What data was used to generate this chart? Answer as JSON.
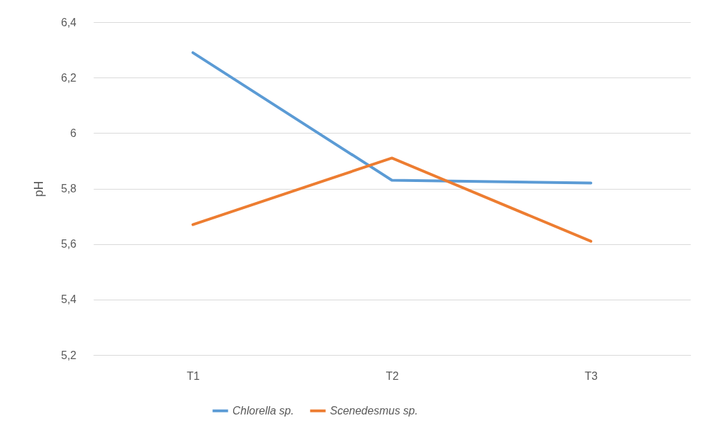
{
  "chart_data": {
    "type": "line",
    "ylabel": "pH",
    "categories": [
      "T1",
      "T2",
      "T3"
    ],
    "series": [
      {
        "name": "Chlorella sp.",
        "color": "#5b9bd5",
        "values": [
          6.29,
          5.83,
          5.82
        ]
      },
      {
        "name": "Scenedesmus sp.",
        "color": "#ed7d31",
        "values": [
          5.67,
          5.91,
          5.61
        ]
      }
    ],
    "ylim": [
      5.2,
      6.4
    ],
    "yticks": [
      {
        "value": 5.2,
        "label": "5,2"
      },
      {
        "value": 5.4,
        "label": "5,4"
      },
      {
        "value": 5.6,
        "label": "5,6"
      },
      {
        "value": 5.8,
        "label": "5,8"
      },
      6,
      {
        "value": 6.2,
        "label": "6,2"
      },
      {
        "value": 6.4,
        "label": "6,4"
      }
    ],
    "grid": "y",
    "legend": "bottom",
    "marker": "none",
    "line_style": "solid"
  }
}
